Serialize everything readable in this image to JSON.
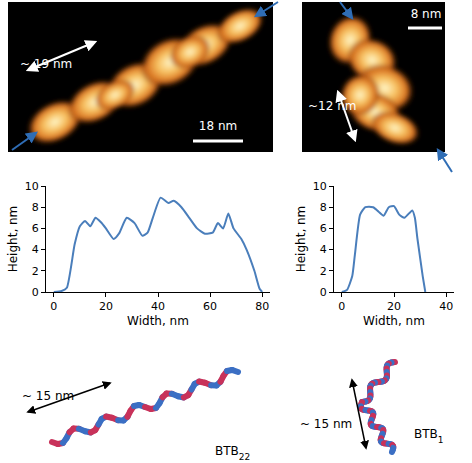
{
  "images": [
    {
      "length_label": "~ 19 nm",
      "scale_bar": "18 nm"
    },
    {
      "length_label": "~12 nm",
      "scale_bar": "8 nm"
    }
  ],
  "chart_data": [
    {
      "type": "line",
      "x_label": "Width, nm",
      "y_label": "Height, nm",
      "color": "#4a7ebb",
      "x": [
        0,
        3,
        5,
        8,
        10,
        12,
        14,
        16,
        18,
        20,
        23,
        25,
        28,
        31,
        34,
        36,
        38,
        41,
        44,
        46,
        49,
        52,
        55,
        58,
        61,
        63,
        65,
        67,
        69,
        72,
        74,
        77,
        79,
        80
      ],
      "values": [
        0,
        0.1,
        0.4,
        4.5,
        6.2,
        6.7,
        6.2,
        7,
        6.6,
        6,
        5,
        5.5,
        7,
        6.5,
        5.3,
        5.6,
        7,
        8.9,
        8.4,
        8.6,
        8,
        7,
        6,
        5.5,
        5.6,
        6.5,
        6,
        7.4,
        6,
        5,
        4,
        2,
        0.3,
        0
      ],
      "xlim": [
        -3,
        83
      ],
      "xticks": [
        0,
        20,
        40,
        60,
        80
      ],
      "ylim": [
        0,
        10
      ],
      "yticks": [
        0,
        2,
        4,
        6,
        8,
        10
      ]
    },
    {
      "type": "line",
      "x_label": "Width, nm",
      "y_label": "Height, nm",
      "color": "#4a7ebb",
      "x": [
        0,
        2,
        4,
        5,
        7,
        9,
        12,
        14,
        16,
        18,
        20,
        22,
        24,
        27,
        28,
        29,
        31,
        32
      ],
      "values": [
        0,
        0.2,
        1.5,
        3.5,
        7.3,
        8,
        8,
        7.6,
        7.2,
        8,
        8.1,
        7.3,
        7,
        7.7,
        7,
        5,
        1.5,
        0
      ],
      "xlim": [
        -3,
        43
      ],
      "xticks": [
        0,
        20,
        40
      ],
      "ylim": [
        0,
        10
      ],
      "yticks": [
        0,
        2,
        4,
        6,
        8,
        10
      ]
    }
  ],
  "models": [
    {
      "length_label": "~ 15 nm",
      "name": "BTB22"
    },
    {
      "length_label": "~ 15 nm",
      "name": "BTB1"
    }
  ]
}
